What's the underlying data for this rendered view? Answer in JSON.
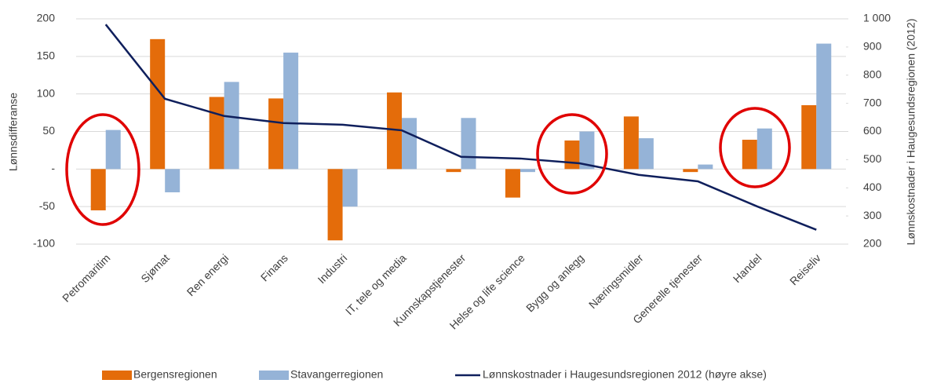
{
  "chart_data": {
    "type": "bar_line",
    "y_axis_label": "Lønnsdifferanse",
    "y2_axis_label": "Lønnskostnader i Haugesundsregionen (2012)",
    "categories": [
      "Petromaritim",
      "Sjømat",
      "Ren energi",
      "Finans",
      "Industri",
      "IT, tele og media",
      "Kunnskapstjenester",
      "Helse og life science",
      "Bygg og anlegg",
      "Næringsmidler",
      "Generelle tjenester",
      "Handel",
      "Reiseliv"
    ],
    "series": [
      {
        "name": "Bergensregionen",
        "color": "#e46c0a",
        "type": "bar",
        "values": [
          -55,
          173,
          96,
          94,
          -95,
          102,
          -4,
          -38,
          38,
          70,
          -4,
          39,
          85
        ]
      },
      {
        "name": "Stavangerregionen",
        "color": "#95b3d7",
        "type": "bar",
        "values": [
          52,
          -31,
          116,
          155,
          -50,
          68,
          68,
          -4,
          50,
          41,
          6,
          54,
          167
        ]
      },
      {
        "name": "Lønnskostnader i Haugesundsregionen 2012  (høyre akse)",
        "color": "#0f1f5c",
        "type": "line",
        "axis": "y2",
        "values": [
          980,
          716,
          655,
          630,
          624,
          604,
          510,
          504,
          487,
          446,
          423,
          334,
          251
        ]
      }
    ],
    "ylim": [
      -100,
      200
    ],
    "yticks": [
      -100,
      -50,
      {
        "value": 0,
        "label": "-"
      },
      50,
      100,
      150,
      200
    ],
    "y2lim": [
      200,
      1000
    ],
    "y2ticks": [
      200,
      300,
      400,
      500,
      600,
      700,
      800,
      900,
      {
        "value": 1000,
        "label": "1 000"
      }
    ],
    "grid": true,
    "legend": "bottom"
  }
}
